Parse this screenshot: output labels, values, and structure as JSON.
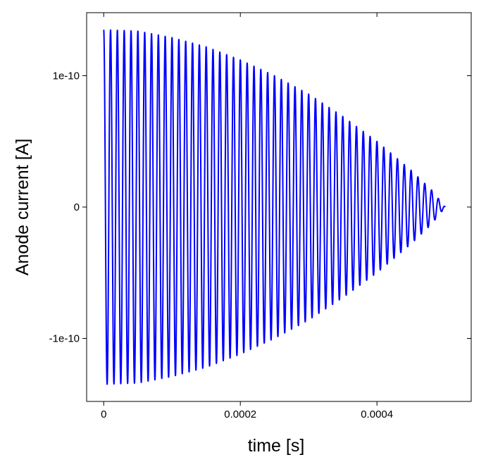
{
  "chart_data": {
    "type": "line",
    "title": "",
    "xlabel": "time [s]",
    "ylabel": "Anode current [A]",
    "xlim": [
      -2.5e-05,
      0.000538
    ],
    "ylim": [
      -1.48e-10,
      1.48e-10
    ],
    "grid": false,
    "legend": "none",
    "x_ticks": [
      {
        "value": 0,
        "label": "0"
      },
      {
        "value": 0.0002,
        "label": "0.0002"
      },
      {
        "value": 0.0004,
        "label": "0.0004"
      }
    ],
    "y_ticks": [
      {
        "value": 1e-10,
        "label": "1e-10"
      },
      {
        "value": 0,
        "label": "0"
      },
      {
        "value": -1e-10,
        "label": "-1e-10"
      }
    ],
    "series": [
      {
        "color": "#0000ff",
        "form": "damped sine",
        "amplitude": 1.35e-10,
        "frequency_hz": 100000,
        "t_start": 0,
        "t_end": 0.0005,
        "x": [
          0,
          5e-05,
          0.0001,
          0.00015,
          0.0002,
          0.00025,
          0.0003,
          0.00035,
          0.0004,
          0.00045,
          0.00048,
          0.0005
        ],
        "envelope": [
          1.35e-10,
          1.34e-10,
          1.29e-10,
          1.22e-10,
          1.12e-10,
          1e-10,
          8.6e-11,
          6.9e-11,
          5e-11,
          2.8e-11,
          1.3e-11,
          0
        ]
      }
    ]
  }
}
